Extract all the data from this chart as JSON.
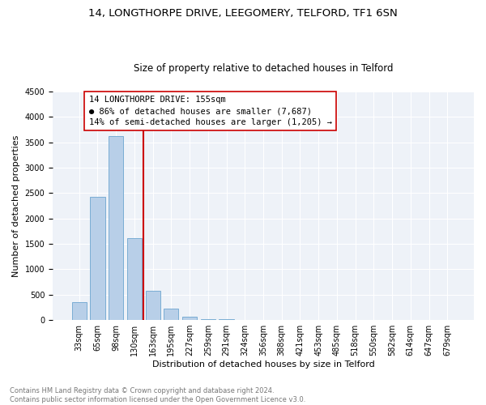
{
  "title": "14, LONGTHORPE DRIVE, LEEGOMERY, TELFORD, TF1 6SN",
  "subtitle": "Size of property relative to detached houses in Telford",
  "xlabel": "Distribution of detached houses by size in Telford",
  "ylabel": "Number of detached properties",
  "categories": [
    "33sqm",
    "65sqm",
    "98sqm",
    "130sqm",
    "163sqm",
    "195sqm",
    "227sqm",
    "259sqm",
    "291sqm",
    "324sqm",
    "356sqm",
    "388sqm",
    "421sqm",
    "453sqm",
    "485sqm",
    "518sqm",
    "550sqm",
    "582sqm",
    "614sqm",
    "647sqm",
    "679sqm"
  ],
  "values": [
    350,
    2420,
    3620,
    1620,
    570,
    230,
    60,
    20,
    10,
    5,
    3,
    2,
    2,
    1,
    1,
    1,
    1,
    0,
    0,
    0,
    0
  ],
  "bar_color": "#b8cfe8",
  "bar_edge_color": "#7aadd4",
  "vline_x": 3.5,
  "vline_color": "#cc0000",
  "ylim": [
    0,
    4500
  ],
  "yticks": [
    0,
    500,
    1000,
    1500,
    2000,
    2500,
    3000,
    3500,
    4000,
    4500
  ],
  "annotation_line1": "14 LONGTHORPE DRIVE: 155sqm",
  "annotation_line2": "● 86% of detached houses are smaller (7,687)",
  "annotation_line3": "14% of semi-detached houses are larger (1,205) →",
  "annotation_box_edge_color": "#cc0000",
  "footnote": "Contains HM Land Registry data © Crown copyright and database right 2024.\nContains public sector information licensed under the Open Government Licence v3.0.",
  "title_fontsize": 9.5,
  "subtitle_fontsize": 8.5,
  "ylabel_fontsize": 8,
  "xlabel_fontsize": 8,
  "tick_fontsize": 7,
  "annotation_fontsize": 7.5,
  "footnote_fontsize": 6,
  "background_color": "#eef2f8",
  "grid_color": "#ffffff"
}
